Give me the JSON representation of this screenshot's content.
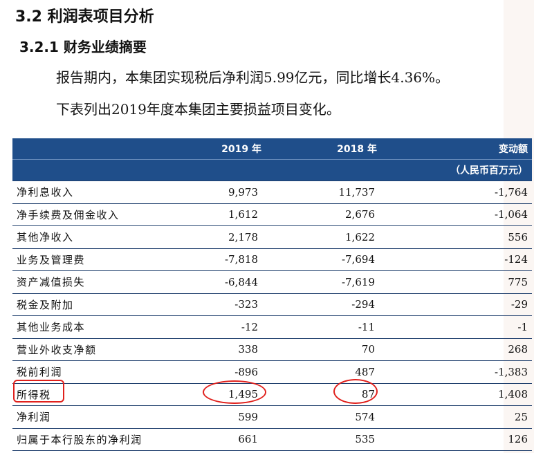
{
  "section": {
    "heading": "3.2 利润表项目分析",
    "subheading": "3.2.1 财务业绩摘要",
    "paragraph_1": "报告期内，本集团实现税后净利润5.99亿元，同比增长4.36%。",
    "paragraph_2": "下表列出2019年度本集团主要损益项目变化。"
  },
  "table": {
    "headers": {
      "col_2019": "2019 年",
      "col_2018": "2018 年",
      "col_change": "变动额",
      "unit": "（人民币百万元）"
    },
    "rows": [
      {
        "label": "净利息收入",
        "y2019": "9,973",
        "y2018": "11,737",
        "change": "-1,764"
      },
      {
        "label": "净手续费及佣金收入",
        "y2019": "1,612",
        "y2018": "2,676",
        "change": "-1,064"
      },
      {
        "label": "其他净收入",
        "y2019": "2,178",
        "y2018": "1,622",
        "change": "556"
      },
      {
        "label": "业务及管理费",
        "y2019": "-7,818",
        "y2018": "-7,694",
        "change": "-124"
      },
      {
        "label": "资产减值损失",
        "y2019": "-6,844",
        "y2018": "-7,619",
        "change": "775"
      },
      {
        "label": "税金及附加",
        "y2019": "-323",
        "y2018": "-294",
        "change": "-29"
      },
      {
        "label": "其他业务成本",
        "y2019": "-12",
        "y2018": "-11",
        "change": "-1"
      },
      {
        "label": "营业外收支净额",
        "y2019": "338",
        "y2018": "70",
        "change": "268"
      },
      {
        "label": "税前利润",
        "y2019": "-896",
        "y2018": "487",
        "change": "-1,383"
      },
      {
        "label": "所得税",
        "y2019": "1,495",
        "y2018": "87",
        "change": "1,408"
      },
      {
        "label": "净利润",
        "y2019": "599",
        "y2018": "574",
        "change": "25"
      },
      {
        "label": "归属于本行股东的净利润",
        "y2019": "661",
        "y2018": "535",
        "change": "126"
      }
    ]
  },
  "annotation_color": "#e0201c",
  "header_color": "#1f4e8a"
}
